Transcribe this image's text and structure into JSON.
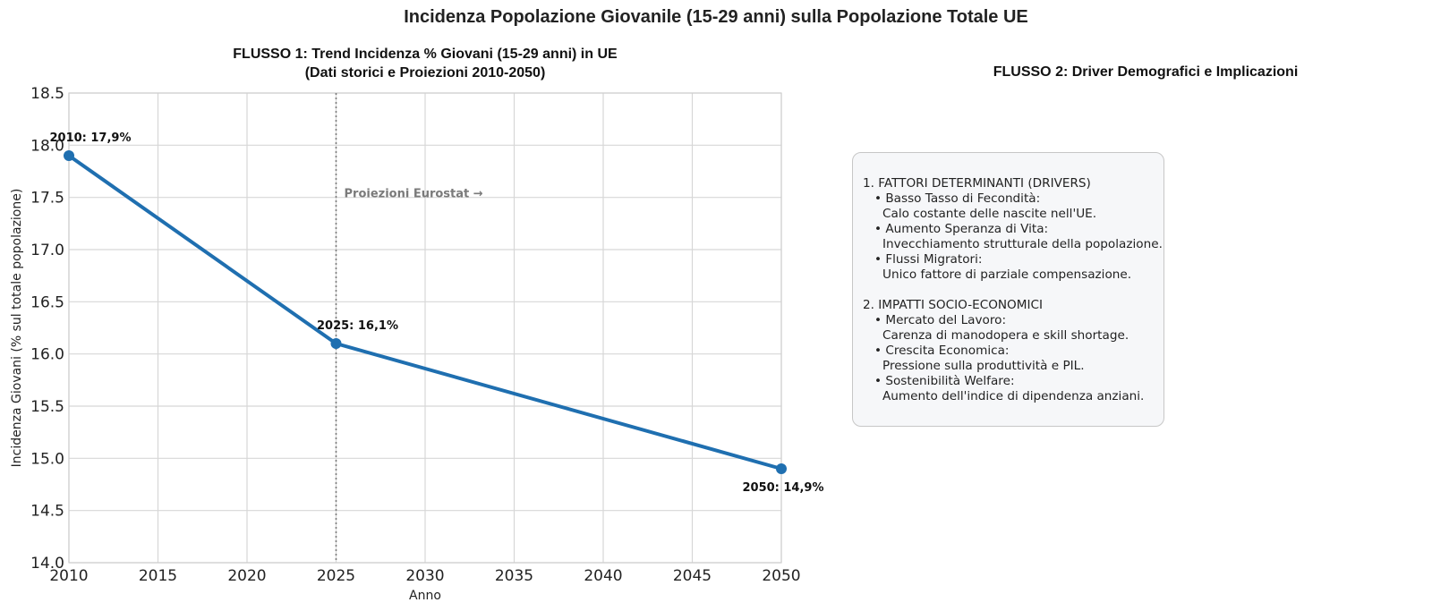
{
  "suptitle": "Incidenza Popolazione Giovanile (15-29 anni) sulla Popolazione Totale UE",
  "chart_data": {
    "type": "line",
    "title_line1": "FLUSSO 1: Trend Incidenza % Giovani (15-29 anni) in UE",
    "title_line2": "(Dati storici e Proiezioni 2010-2050)",
    "xlabel": "Anno",
    "ylabel": "Incidenza Giovani (% sul totale popolazione)",
    "xlim": [
      2010,
      2050
    ],
    "ylim": [
      14.0,
      18.5
    ],
    "grid": true,
    "x_ticks": [
      2010,
      2015,
      2020,
      2025,
      2030,
      2035,
      2040,
      2045,
      2050
    ],
    "y_ticks": [
      14.0,
      14.5,
      15.0,
      15.5,
      16.0,
      16.5,
      17.0,
      17.5,
      18.0,
      18.5
    ],
    "series": [
      {
        "color": "#1f6fb0",
        "points": [
          {
            "x": 2010,
            "y": 17.9,
            "label": "2010: 17,9%"
          },
          {
            "x": 2025,
            "y": 16.1,
            "label": "2025: 16,1%"
          },
          {
            "x": 2050,
            "y": 14.9,
            "label": "2050: 14,9%"
          }
        ]
      }
    ],
    "vline": {
      "x": 2025,
      "label": "Proiezioni Eurostat →",
      "color": "#7a7a7a"
    }
  },
  "right_panel": {
    "title": "FLUSSO 2: Driver Demografici e Implicazioni",
    "sections": [
      {
        "heading": "1. FATTORI DETERMINANTI (DRIVERS)",
        "items": [
          {
            "label": "• Basso Tasso di Fecondità:",
            "detail": "Calo costante delle nascite nell'UE."
          },
          {
            "label": "• Aumento Speranza di Vita:",
            "detail": "Invecchiamento strutturale della popolazione."
          },
          {
            "label": "• Flussi Migratori:",
            "detail": "Unico fattore di parziale compensazione."
          }
        ]
      },
      {
        "heading": "2. IMPATTI SOCIO-ECONOMICI",
        "items": [
          {
            "label": "• Mercato del Lavoro:",
            "detail": "Carenza di manodopera e skill shortage."
          },
          {
            "label": "• Crescita Economica:",
            "detail": "Pressione sulla produttività e PIL."
          },
          {
            "label": "• Sostenibilità Welfare:",
            "detail": "Aumento dell'indice di dipendenza anziani."
          }
        ]
      }
    ]
  }
}
